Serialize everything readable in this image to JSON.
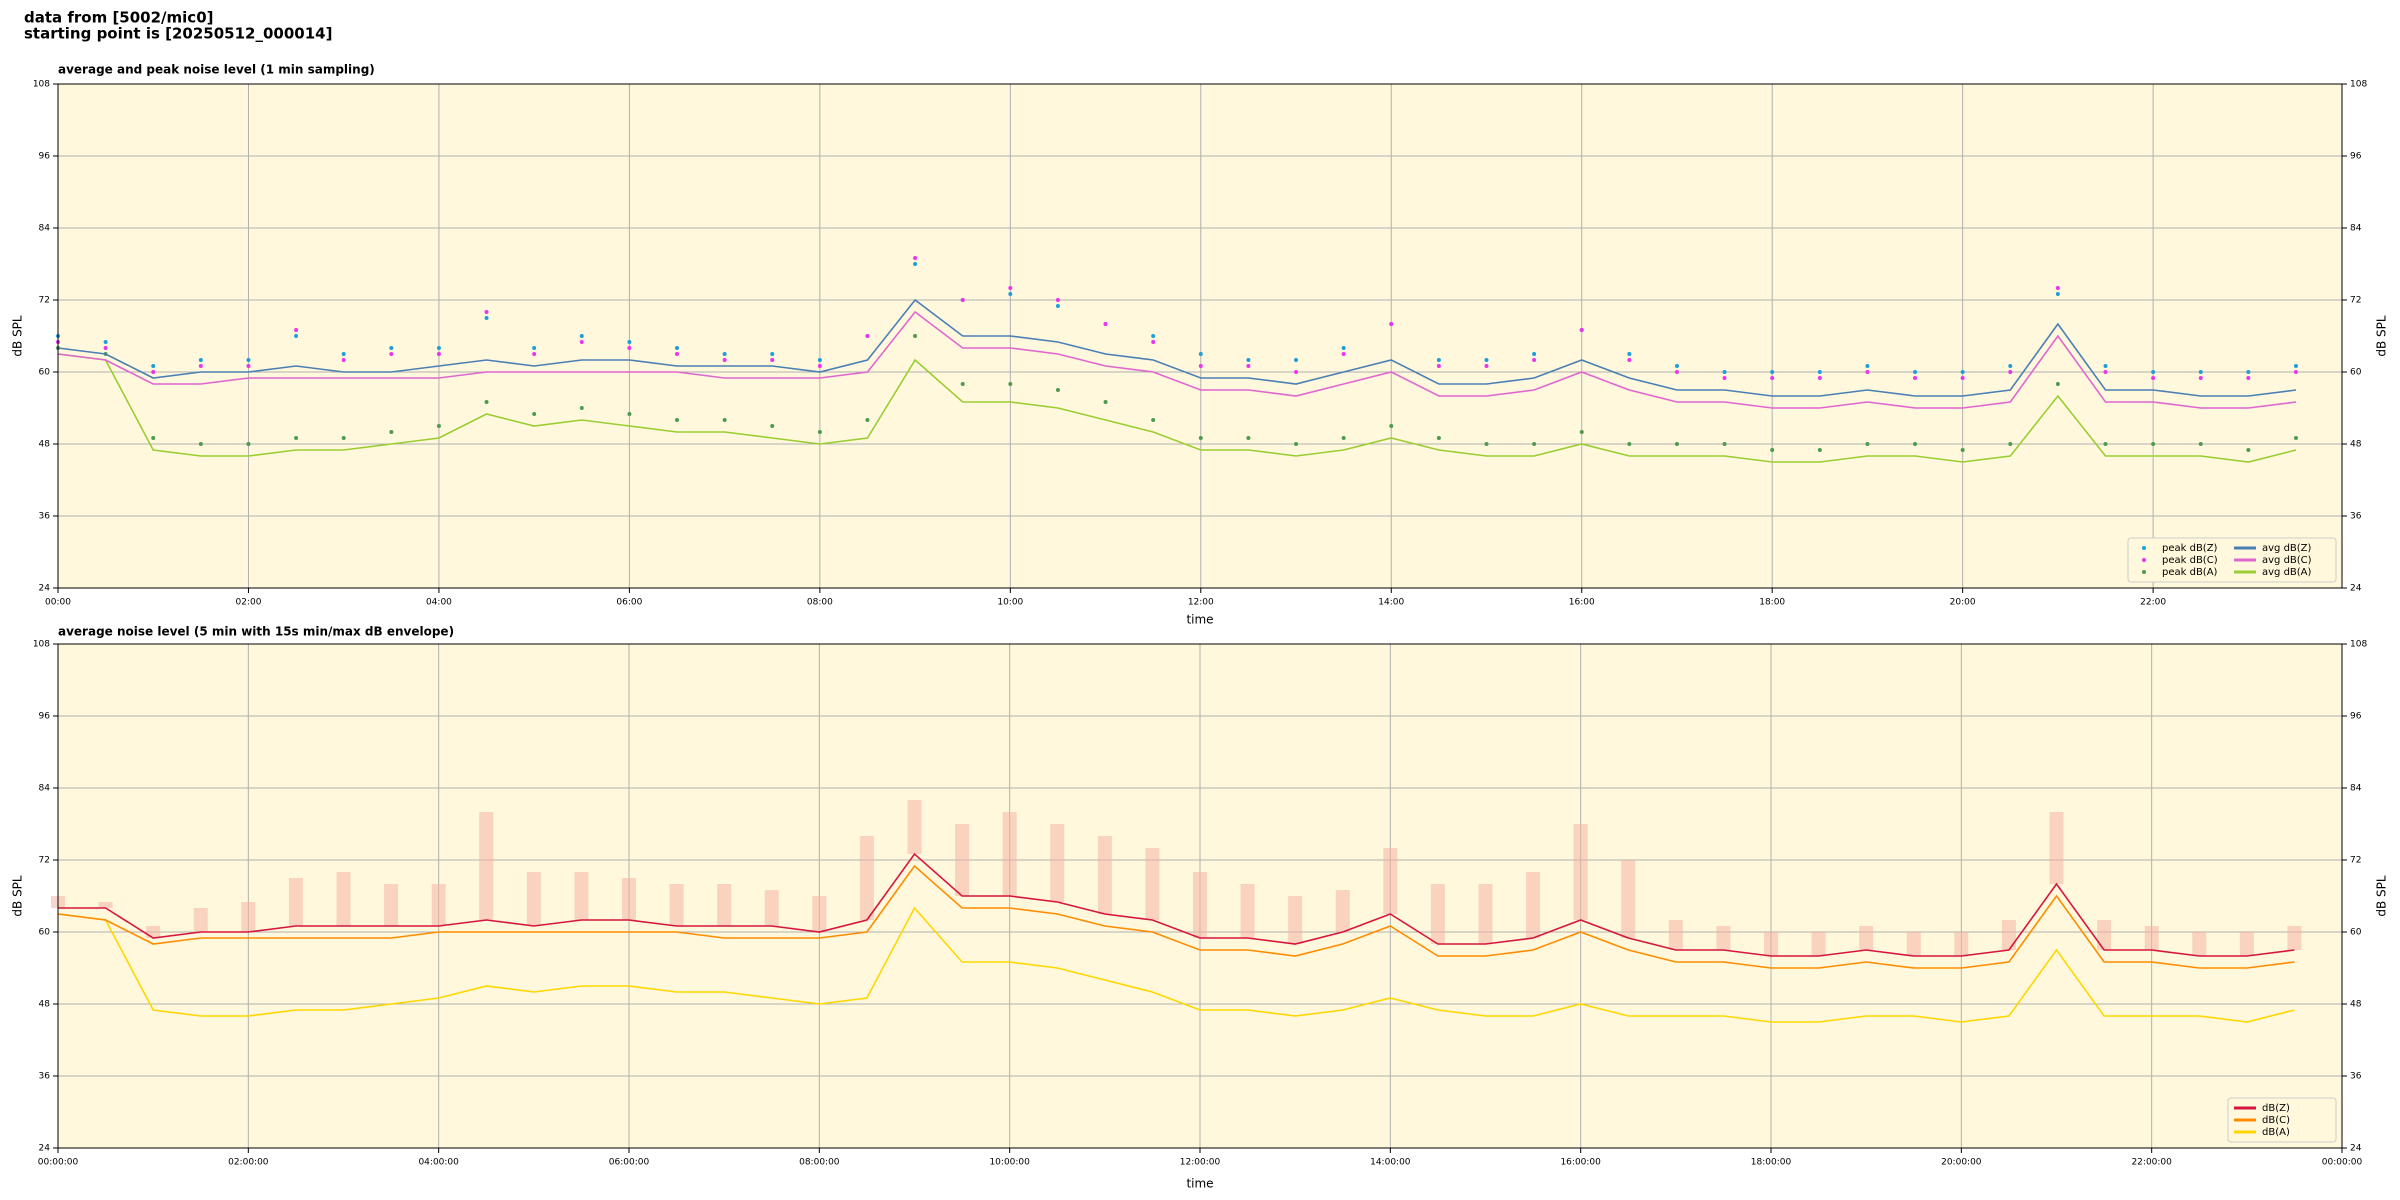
{
  "header": {
    "line1": "data from [5002/mic0]",
    "line2": "starting point is [20250512_000014]"
  },
  "chart_data": [
    {
      "type": "line",
      "title": "average and peak noise level (1 min sampling)",
      "xlabel": "time",
      "ylabel": "dB SPL",
      "background": "#fff8dc",
      "grid": true,
      "legend": "lower right",
      "legend_columns": 2,
      "x": [
        "00:00",
        "00:30",
        "01:00",
        "01:30",
        "02:00",
        "02:30",
        "03:00",
        "03:30",
        "04:00",
        "04:30",
        "05:00",
        "05:30",
        "06:00",
        "06:30",
        "07:00",
        "07:30",
        "08:00",
        "08:30",
        "09:00",
        "09:30",
        "10:00",
        "10:30",
        "11:00",
        "11:30",
        "12:00",
        "12:30",
        "13:00",
        "13:30",
        "14:00",
        "14:30",
        "15:00",
        "15:30",
        "16:00",
        "16:30",
        "17:00",
        "17:30",
        "18:00",
        "18:30",
        "19:00",
        "19:30",
        "20:00",
        "20:30",
        "21:00",
        "21:30",
        "22:00",
        "22:30",
        "23:00",
        "23:30"
      ],
      "xlim": [
        "00:00",
        "23:59"
      ],
      "xticks": [
        "00:00",
        "02:00",
        "04:00",
        "06:00",
        "08:00",
        "10:00",
        "12:00",
        "14:00",
        "16:00",
        "18:00",
        "20:00",
        "22:00"
      ],
      "ylim": [
        24,
        108
      ],
      "yticks": [
        24,
        36,
        48,
        60,
        72,
        84,
        96,
        108
      ],
      "series": [
        {
          "name": "peak dB(Z)",
          "kind": "scatter",
          "color": "#1f9ed8",
          "values": [
            66,
            65,
            61,
            62,
            62,
            66,
            63,
            64,
            64,
            69,
            64,
            66,
            65,
            64,
            63,
            63,
            62,
            66,
            78,
            72,
            73,
            71,
            68,
            66,
            63,
            62,
            62,
            64,
            68,
            62,
            62,
            63,
            67,
            63,
            61,
            60,
            60,
            60,
            61,
            60,
            60,
            61,
            73,
            61,
            60,
            60,
            60,
            61
          ]
        },
        {
          "name": "peak dB(C)",
          "kind": "scatter",
          "color": "#ee33ee",
          "values": [
            65,
            64,
            60,
            61,
            61,
            67,
            62,
            63,
            63,
            70,
            63,
            65,
            64,
            63,
            62,
            62,
            61,
            66,
            79,
            72,
            74,
            72,
            68,
            65,
            61,
            61,
            60,
            63,
            68,
            61,
            61,
            62,
            67,
            62,
            60,
            59,
            59,
            59,
            60,
            59,
            59,
            60,
            74,
            60,
            59,
            59,
            59,
            60
          ]
        },
        {
          "name": "peak dB(A)",
          "kind": "scatter",
          "color": "#4e9a4e",
          "values": [
            64,
            63,
            49,
            48,
            48,
            49,
            49,
            50,
            51,
            55,
            53,
            54,
            53,
            52,
            52,
            51,
            50,
            52,
            66,
            58,
            58,
            57,
            55,
            52,
            49,
            49,
            48,
            49,
            51,
            49,
            48,
            48,
            50,
            48,
            48,
            48,
            47,
            47,
            48,
            48,
            47,
            48,
            58,
            48,
            48,
            48,
            47,
            49
          ]
        },
        {
          "name": "avg dB(Z)",
          "kind": "line",
          "color": "#4a7fb5",
          "values": [
            64,
            63,
            59,
            60,
            60,
            61,
            60,
            60,
            61,
            62,
            61,
            62,
            62,
            61,
            61,
            61,
            60,
            62,
            72,
            66,
            66,
            65,
            63,
            62,
            59,
            59,
            58,
            60,
            62,
            58,
            58,
            59,
            62,
            59,
            57,
            57,
            56,
            56,
            57,
            56,
            56,
            57,
            68,
            57,
            57,
            56,
            56,
            57
          ]
        },
        {
          "name": "avg dB(C)",
          "kind": "line",
          "color": "#e066d0",
          "values": [
            63,
            62,
            58,
            58,
            59,
            59,
            59,
            59,
            59,
            60,
            60,
            60,
            60,
            60,
            59,
            59,
            59,
            60,
            70,
            64,
            64,
            63,
            61,
            60,
            57,
            57,
            56,
            58,
            60,
            56,
            56,
            57,
            60,
            57,
            55,
            55,
            54,
            54,
            55,
            54,
            54,
            55,
            66,
            55,
            55,
            54,
            54,
            55
          ]
        },
        {
          "name": "avg dB(A)",
          "kind": "line",
          "color": "#9acd32",
          "values": [
            63,
            62,
            47,
            46,
            46,
            47,
            47,
            48,
            49,
            53,
            51,
            52,
            51,
            50,
            50,
            49,
            48,
            49,
            62,
            55,
            55,
            54,
            52,
            50,
            47,
            47,
            46,
            47,
            49,
            47,
            46,
            46,
            48,
            46,
            46,
            46,
            45,
            45,
            46,
            46,
            45,
            46,
            56,
            46,
            46,
            46,
            45,
            47
          ]
        }
      ]
    },
    {
      "type": "line",
      "title": "average noise level (5 min with 15s min/max dB envelope)",
      "xlabel": "time",
      "ylabel": "dB SPL",
      "background": "#fff8dc",
      "grid": true,
      "legend": "lower right",
      "legend_columns": 1,
      "x": [
        "00:00:00",
        "00:30:00",
        "01:00:00",
        "01:30:00",
        "02:00:00",
        "02:30:00",
        "03:00:00",
        "03:30:00",
        "04:00:00",
        "04:30:00",
        "05:00:00",
        "05:30:00",
        "06:00:00",
        "06:30:00",
        "07:00:00",
        "07:30:00",
        "08:00:00",
        "08:30:00",
        "09:00:00",
        "09:30:00",
        "10:00:00",
        "10:30:00",
        "11:00:00",
        "11:30:00",
        "12:00:00",
        "12:30:00",
        "13:00:00",
        "13:30:00",
        "14:00:00",
        "14:30:00",
        "15:00:00",
        "15:30:00",
        "16:00:00",
        "16:30:00",
        "17:00:00",
        "17:30:00",
        "18:00:00",
        "18:30:00",
        "19:00:00",
        "19:30:00",
        "20:00:00",
        "20:30:00",
        "21:00:00",
        "21:30:00",
        "22:00:00",
        "22:30:00",
        "23:00:00",
        "23:30:00"
      ],
      "xlim": [
        "00:00:00",
        "00:00:00"
      ],
      "xticks": [
        "00:00:00",
        "02:00:00",
        "04:00:00",
        "06:00:00",
        "08:00:00",
        "10:00:00",
        "12:00:00",
        "14:00:00",
        "16:00:00",
        "18:00:00",
        "20:00:00",
        "22:00:00",
        "00:00:00"
      ],
      "ylim": [
        24,
        108
      ],
      "yticks": [
        24,
        36,
        48,
        60,
        72,
        84,
        96,
        108
      ],
      "envelope": {
        "color": "#f4b4a4",
        "values": [
          66,
          65,
          61,
          64,
          65,
          69,
          70,
          68,
          68,
          80,
          70,
          70,
          69,
          68,
          68,
          67,
          66,
          76,
          82,
          78,
          80,
          78,
          76,
          74,
          70,
          68,
          66,
          67,
          74,
          68,
          68,
          70,
          78,
          72,
          62,
          61,
          60,
          60,
          61,
          60,
          60,
          62,
          80,
          62,
          61,
          60,
          60,
          61
        ]
      },
      "series": [
        {
          "name": "dB(Z)",
          "kind": "line",
          "color": "#d6163f",
          "values": [
            64,
            64,
            59,
            60,
            60,
            61,
            61,
            61,
            61,
            62,
            61,
            62,
            62,
            61,
            61,
            61,
            60,
            62,
            73,
            66,
            66,
            65,
            63,
            62,
            59,
            59,
            58,
            60,
            63,
            58,
            58,
            59,
            62,
            59,
            57,
            57,
            56,
            56,
            57,
            56,
            56,
            57,
            68,
            57,
            57,
            56,
            56,
            57
          ]
        },
        {
          "name": "dB(C)",
          "kind": "line",
          "color": "#ff8c00",
          "values": [
            63,
            62,
            58,
            59,
            59,
            59,
            59,
            59,
            60,
            60,
            60,
            60,
            60,
            60,
            59,
            59,
            59,
            60,
            71,
            64,
            64,
            63,
            61,
            60,
            57,
            57,
            56,
            58,
            61,
            56,
            56,
            57,
            60,
            57,
            55,
            55,
            54,
            54,
            55,
            54,
            54,
            55,
            66,
            55,
            55,
            54,
            54,
            55
          ]
        },
        {
          "name": "dB(A)",
          "kind": "line",
          "color": "#ffd700",
          "values": [
            63,
            62,
            47,
            46,
            46,
            47,
            47,
            48,
            49,
            51,
            50,
            51,
            51,
            50,
            50,
            49,
            48,
            49,
            64,
            55,
            55,
            54,
            52,
            50,
            47,
            47,
            46,
            47,
            49,
            47,
            46,
            46,
            48,
            46,
            46,
            46,
            45,
            45,
            46,
            46,
            45,
            46,
            57,
            46,
            46,
            46,
            45,
            47
          ]
        }
      ]
    }
  ]
}
